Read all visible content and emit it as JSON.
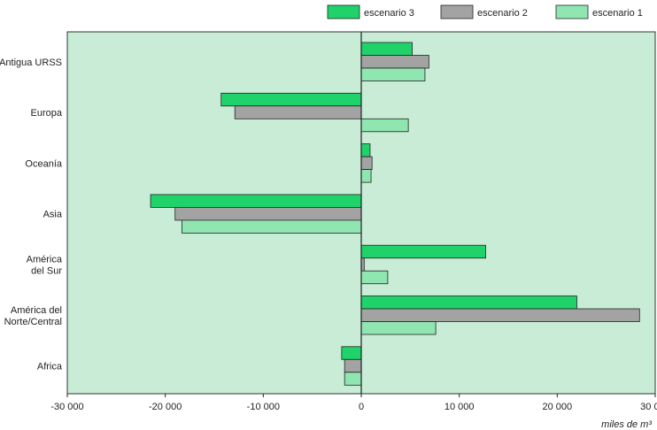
{
  "chart_data": {
    "type": "bar",
    "orientation": "horizontal",
    "categories": [
      [
        "Antigua URSS"
      ],
      [
        "Europa"
      ],
      [
        "Oceanía"
      ],
      [
        "Asia"
      ],
      [
        "América",
        "del Sur"
      ],
      [
        "América del",
        "Norte/Central"
      ],
      [
        "Africa"
      ]
    ],
    "series": [
      {
        "name": "escenario 3",
        "color": "#1fd36a",
        "values": [
          5200,
          -14300,
          900,
          -21500,
          12700,
          22000,
          -2000
        ]
      },
      {
        "name": "escenario 2",
        "color": "#a3a3a3",
        "values": [
          6900,
          -12900,
          1100,
          -19000,
          300,
          28400,
          -1700
        ]
      },
      {
        "name": "escenario 1",
        "color": "#8fe6b0",
        "values": [
          6500,
          4800,
          1000,
          -18300,
          2700,
          7600,
          -1700
        ]
      }
    ],
    "xlim": [
      -30000,
      30000
    ],
    "xticks": [
      -30000,
      -20000,
      -10000,
      0,
      10000,
      20000,
      30000
    ],
    "tick_labels": [
      "-30 000",
      "-20 000",
      "-10 000",
      "0",
      "10 000",
      "20 000",
      "30 000"
    ],
    "unit_label": "miles de m³",
    "legend_position": "top-right",
    "grid": false,
    "plot_background": "#c8ecd6"
  }
}
